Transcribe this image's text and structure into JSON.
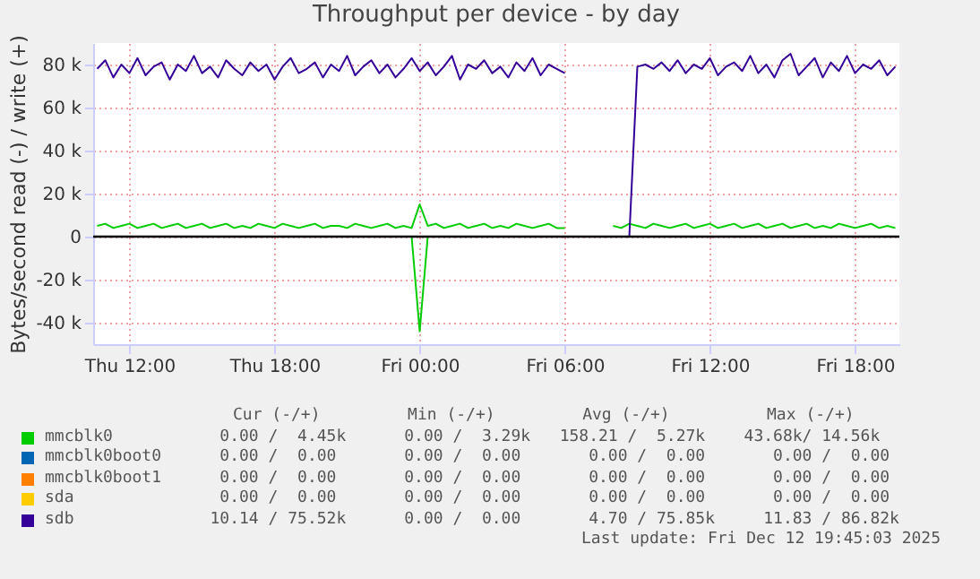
{
  "chart_data": {
    "type": "line",
    "title": "Throughput per device - by day",
    "ylabel": "Bytes/second read (-) / write (+)",
    "x": [
      "2025-12-11T10:40",
      "2025-12-11T11:00",
      "2025-12-11T11:20",
      "2025-12-11T11:40",
      "2025-12-11T12:00",
      "2025-12-11T12:20",
      "2025-12-11T12:40",
      "2025-12-11T13:00",
      "2025-12-11T13:20",
      "2025-12-11T13:40",
      "2025-12-11T14:00",
      "2025-12-11T14:20",
      "2025-12-11T14:40",
      "2025-12-11T15:00",
      "2025-12-11T15:20",
      "2025-12-11T15:40",
      "2025-12-11T16:00",
      "2025-12-11T16:20",
      "2025-12-11T16:40",
      "2025-12-11T17:00",
      "2025-12-11T17:20",
      "2025-12-11T17:40",
      "2025-12-11T18:00",
      "2025-12-11T18:20",
      "2025-12-11T18:40",
      "2025-12-11T19:00",
      "2025-12-11T19:20",
      "2025-12-11T19:40",
      "2025-12-11T20:00",
      "2025-12-11T20:20",
      "2025-12-11T20:40",
      "2025-12-11T21:00",
      "2025-12-11T21:20",
      "2025-12-11T21:40",
      "2025-12-11T22:00",
      "2025-12-11T22:20",
      "2025-12-11T22:40",
      "2025-12-11T23:00",
      "2025-12-11T23:20",
      "2025-12-11T23:40",
      "2025-12-12T00:00",
      "2025-12-12T00:20",
      "2025-12-12T00:40",
      "2025-12-12T01:00",
      "2025-12-12T01:20",
      "2025-12-12T01:40",
      "2025-12-12T02:00",
      "2025-12-12T02:20",
      "2025-12-12T02:40",
      "2025-12-12T03:00",
      "2025-12-12T03:20",
      "2025-12-12T03:40",
      "2025-12-12T04:00",
      "2025-12-12T04:20",
      "2025-12-12T04:40",
      "2025-12-12T05:00",
      "2025-12-12T05:20",
      "2025-12-12T05:40",
      "2025-12-12T06:00",
      "2025-12-12T06:20",
      "2025-12-12T06:40",
      "2025-12-12T07:00",
      "2025-12-12T07:20",
      "2025-12-12T07:40",
      "2025-12-12T08:00",
      "2025-12-12T08:20",
      "2025-12-12T08:40",
      "2025-12-12T09:00",
      "2025-12-12T09:20",
      "2025-12-12T09:40",
      "2025-12-12T10:00",
      "2025-12-12T10:20",
      "2025-12-12T10:40",
      "2025-12-12T11:00",
      "2025-12-12T11:20",
      "2025-12-12T11:40",
      "2025-12-12T12:00",
      "2025-12-12T12:20",
      "2025-12-12T12:40",
      "2025-12-12T13:00",
      "2025-12-12T13:20",
      "2025-12-12T13:40",
      "2025-12-12T14:00",
      "2025-12-12T14:20",
      "2025-12-12T14:40",
      "2025-12-12T15:00",
      "2025-12-12T15:20",
      "2025-12-12T15:40",
      "2025-12-12T16:00",
      "2025-12-12T16:20",
      "2025-12-12T16:40",
      "2025-12-12T17:00",
      "2025-12-12T17:20",
      "2025-12-12T17:40",
      "2025-12-12T18:00",
      "2025-12-12T18:20",
      "2025-12-12T18:40",
      "2025-12-12T19:00",
      "2025-12-12T19:20",
      "2025-12-12T19:40"
    ],
    "series": [
      {
        "name": "mmcblk0",
        "color": "#00cc00",
        "values": [
          5,
          6,
          4,
          5,
          6,
          4,
          5,
          6,
          4,
          5,
          6,
          4,
          5,
          6,
          4,
          5,
          6,
          4,
          5,
          4,
          6,
          5,
          4,
          6,
          5,
          4,
          5,
          6,
          4,
          5,
          5,
          4,
          6,
          5,
          4,
          5,
          6,
          4,
          5,
          4,
          15,
          5,
          6,
          4,
          5,
          6,
          4,
          5,
          6,
          4,
          5,
          4,
          6,
          5,
          4,
          5,
          6,
          4,
          4,
          null,
          null,
          null,
          null,
          null,
          5,
          4,
          6,
          5,
          4,
          6,
          5,
          4,
          5,
          6,
          4,
          5,
          6,
          4,
          5,
          6,
          4,
          5,
          6,
          4,
          5,
          6,
          4,
          5,
          6,
          4,
          5,
          4,
          6,
          5,
          4,
          5,
          6,
          4,
          5,
          4
        ]
      },
      {
        "color": "#00cc00",
        "x": [
          "2025-12-11T23:40",
          "2025-12-12T00:00",
          "2025-12-12T00:20"
        ],
        "values": [
          0,
          -44,
          0
        ]
      },
      {
        "name": "mmcblk0boot0",
        "color": "#0066b3",
        "values": [
          null,
          null,
          null,
          null,
          null,
          null,
          null,
          null,
          null,
          null,
          null,
          null,
          null,
          null,
          null,
          null,
          null,
          null,
          null,
          null,
          null,
          null,
          null,
          null,
          null,
          null,
          null,
          null,
          null,
          null,
          null,
          null,
          null,
          null,
          null,
          null,
          null,
          null,
          null,
          null,
          null,
          null,
          null,
          null,
          null,
          null,
          null,
          null,
          null,
          null,
          null,
          null,
          null,
          null,
          null,
          null,
          null,
          null,
          null,
          null,
          null,
          null,
          null,
          null,
          null,
          null,
          null,
          null,
          null,
          null,
          null,
          null,
          null,
          null,
          null,
          null,
          null,
          null,
          null,
          null,
          null,
          null,
          null,
          null,
          null,
          null,
          null,
          null,
          null,
          null,
          null,
          null,
          null,
          null,
          null,
          null,
          null,
          null,
          null,
          null
        ]
      },
      {
        "name": "mmcblk0boot1",
        "color": "#ff8000",
        "values": [
          null,
          null,
          null,
          null,
          null,
          null,
          null,
          null,
          null,
          null,
          null,
          null,
          null,
          null,
          null,
          null,
          null,
          null,
          null,
          null,
          null,
          null,
          null,
          null,
          null,
          null,
          null,
          null,
          null,
          null,
          null,
          null,
          null,
          null,
          null,
          null,
          null,
          null,
          null,
          null,
          null,
          null,
          null,
          null,
          null,
          null,
          null,
          null,
          null,
          null,
          null,
          null,
          null,
          null,
          null,
          null,
          null,
          null,
          null,
          null,
          null,
          null,
          null,
          null,
          null,
          null,
          null,
          null,
          null,
          null,
          null,
          null,
          null,
          null,
          null,
          null,
          null,
          null,
          null,
          null,
          null,
          null,
          null,
          null,
          null,
          null,
          null,
          null,
          null,
          null,
          null,
          null,
          null,
          null,
          null,
          null,
          null,
          null,
          null,
          null
        ]
      },
      {
        "name": "sda",
        "color": "#ffcc00",
        "values": [
          null,
          null,
          null,
          null,
          null,
          null,
          null,
          null,
          null,
          null,
          null,
          null,
          null,
          null,
          null,
          null,
          null,
          null,
          null,
          null,
          null,
          null,
          null,
          null,
          null,
          null,
          null,
          null,
          null,
          null,
          null,
          null,
          null,
          null,
          null,
          null,
          null,
          null,
          null,
          null,
          null,
          null,
          null,
          null,
          null,
          null,
          null,
          null,
          null,
          null,
          null,
          null,
          null,
          null,
          null,
          null,
          null,
          null,
          null,
          null,
          null,
          null,
          null,
          null,
          null,
          null,
          null,
          null,
          null,
          null,
          null,
          null,
          null,
          null,
          null,
          null,
          null,
          null,
          null,
          null,
          null,
          null,
          null,
          null,
          null,
          null,
          null,
          null,
          null,
          null,
          null,
          null,
          null,
          null,
          null,
          null,
          null,
          null,
          null,
          null
        ]
      },
      {
        "name": "sdb",
        "color": "#330099",
        "values": [
          78,
          82,
          74,
          80,
          76,
          83,
          75,
          79,
          81,
          73,
          80,
          77,
          84,
          76,
          79,
          74,
          82,
          78,
          75,
          81,
          77,
          80,
          73,
          79,
          83,
          76,
          78,
          81,
          74,
          80,
          77,
          84,
          75,
          79,
          82,
          76,
          80,
          74,
          78,
          83,
          77,
          81,
          75,
          79,
          84,
          73,
          80,
          78,
          82,
          76,
          79,
          74,
          81,
          77,
          83,
          75,
          80,
          78,
          76,
          null,
          null,
          null,
          null,
          null,
          0,
          0,
          0,
          79,
          80,
          78,
          81,
          77,
          82,
          76,
          80,
          78,
          83,
          75,
          79,
          81,
          77,
          84,
          76,
          80,
          74,
          82,
          85,
          75,
          79,
          83,
          74,
          81,
          77,
          84,
          76,
          80,
          78,
          82,
          75,
          79
        ]
      }
    ],
    "xlim": [
      "2025-12-11T10:30",
      "2025-12-12T19:50"
    ],
    "xticks": [
      {
        "value": "2025-12-11T12:00",
        "label": "Thu 12:00"
      },
      {
        "value": "2025-12-11T18:00",
        "label": "Thu 18:00"
      },
      {
        "value": "2025-12-12T00:00",
        "label": "Fri 00:00"
      },
      {
        "value": "2025-12-12T06:00",
        "label": "Fri 06:00"
      },
      {
        "value": "2025-12-12T12:00",
        "label": "Fri 12:00"
      },
      {
        "value": "2025-12-12T18:00",
        "label": "Fri 18:00"
      }
    ],
    "ylim": [
      -50,
      90
    ],
    "yticks": [
      {
        "value": -40,
        "label": "-40 k"
      },
      {
        "value": -20,
        "label": "-20 k"
      },
      0,
      {
        "value": 20,
        "label": "20 k"
      },
      {
        "value": 40,
        "label": "40 k"
      },
      {
        "value": 60,
        "label": "60 k"
      },
      {
        "value": 80,
        "label": "80 k"
      }
    ],
    "ref_lines": [
      {
        "axis": "y",
        "value": 0,
        "color": "#000000"
      }
    ],
    "grid": true,
    "legend": "bottom",
    "annotations": [
      "Cur (-/+)         Min (-/+)         Avg (-/+)          Max (-/+)",
      "    0.00 /  4.45k      0.00 /  3.29k   158.21 /  5.27k    43.68k/ 14.56k",
      "    0.00 /  0.00       0.00 /  0.00       0.00 /  0.00       0.00 /  0.00",
      "    0.00 /  0.00       0.00 /  0.00       0.00 /  0.00       0.00 /  0.00",
      "    0.00 /  0.00       0.00 /  0.00       0.00 /  0.00       0.00 /  0.00",
      "   10.14 / 75.52k      0.00 /  0.00       4.70 / 75.85k     11.83 / 86.82k",
      "Last update: Fri Dec 12 19:45:03 2025"
    ]
  }
}
